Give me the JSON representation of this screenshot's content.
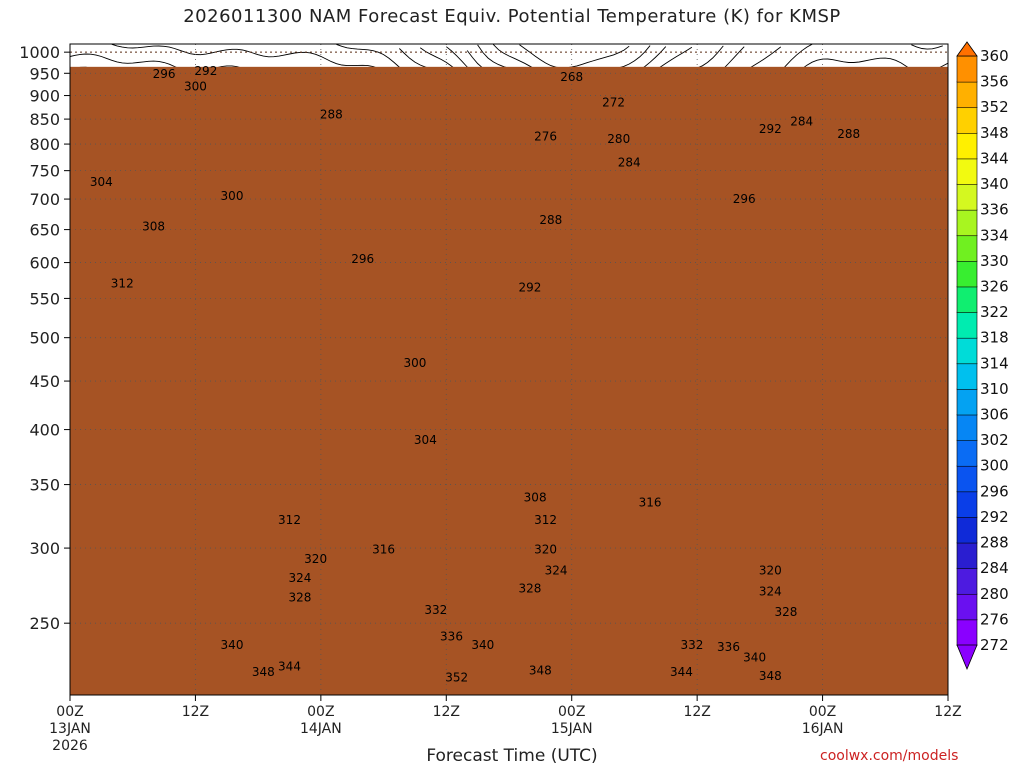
{
  "chart_data": {
    "type": "heatmap",
    "title": "2026011300 NAM Forecast Equiv. Potential Temperature (K) for KMSP",
    "xlabel": "Forecast Time (UTC)",
    "ylabel": "",
    "credit": "coolwx.com/models",
    "y_axis": {
      "scale": "log-pressure",
      "inverted": true,
      "range": [
        1020,
        210
      ],
      "ticks": [
        250,
        300,
        350,
        400,
        450,
        500,
        550,
        600,
        650,
        700,
        750,
        800,
        850,
        900,
        950,
        1000
      ]
    },
    "x_axis": {
      "range_hours": [
        0,
        84
      ],
      "ticks": [
        {
          "hour": 0,
          "label": [
            "00Z",
            "13JAN",
            "2026"
          ]
        },
        {
          "hour": 12,
          "label": [
            "12Z"
          ]
        },
        {
          "hour": 24,
          "label": [
            "00Z",
            "14JAN"
          ]
        },
        {
          "hour": 36,
          "label": [
            "12Z"
          ]
        },
        {
          "hour": 48,
          "label": [
            "00Z",
            "15JAN"
          ]
        },
        {
          "hour": 60,
          "label": [
            "12Z"
          ]
        },
        {
          "hour": 72,
          "label": [
            "00Z",
            "16JAN"
          ]
        },
        {
          "hour": 84,
          "label": [
            "12Z"
          ]
        }
      ]
    },
    "colorbar": {
      "levels": [
        272,
        276,
        280,
        284,
        288,
        292,
        296,
        300,
        302,
        306,
        310,
        314,
        318,
        322,
        326,
        330,
        334,
        336,
        340,
        344,
        348,
        352,
        356,
        360
      ],
      "colors": [
        "#8a00ff",
        "#6a10f0",
        "#4d1be0",
        "#2a1ed0",
        "#0f2ad8",
        "#0a3ee8",
        "#0a54f0",
        "#0a6cf4",
        "#0686f4",
        "#04a2f2",
        "#00c0ee",
        "#00dcd8",
        "#00ecb0",
        "#10ee70",
        "#38ee30",
        "#70f020",
        "#a8f520",
        "#d4f820",
        "#f2fa10",
        "#fff000",
        "#ffd000",
        "#ffb000",
        "#ff9000",
        "#ff7000"
      ]
    },
    "contour_labels": [
      {
        "value": 348,
        "hour": 18.5,
        "p": 222
      },
      {
        "value": 344,
        "hour": 21.0,
        "p": 225
      },
      {
        "value": 352,
        "hour": 37.0,
        "p": 219
      },
      {
        "value": 348,
        "hour": 45.0,
        "p": 223
      },
      {
        "value": 344,
        "hour": 58.5,
        "p": 222
      },
      {
        "value": 348,
        "hour": 67.0,
        "p": 220
      },
      {
        "value": 340,
        "hour": 15.5,
        "p": 237
      },
      {
        "value": 340,
        "hour": 39.5,
        "p": 237
      },
      {
        "value": 336,
        "hour": 36.5,
        "p": 242
      },
      {
        "value": 332,
        "hour": 59.5,
        "p": 237
      },
      {
        "value": 336,
        "hour": 63.0,
        "p": 236
      },
      {
        "value": 340,
        "hour": 65.5,
        "p": 230
      },
      {
        "value": 332,
        "hour": 35.0,
        "p": 258
      },
      {
        "value": 328,
        "hour": 22.0,
        "p": 266
      },
      {
        "value": 324,
        "hour": 22.0,
        "p": 279
      },
      {
        "value": 320,
        "hour": 23.5,
        "p": 292
      },
      {
        "value": 316,
        "hour": 30.0,
        "p": 299
      },
      {
        "value": 312,
        "hour": 21.0,
        "p": 321
      },
      {
        "value": 328,
        "hour": 44.0,
        "p": 272
      },
      {
        "value": 324,
        "hour": 46.5,
        "p": 284
      },
      {
        "value": 320,
        "hour": 45.5,
        "p": 299
      },
      {
        "value": 312,
        "hour": 45.5,
        "p": 321
      },
      {
        "value": 308,
        "hour": 44.5,
        "p": 339
      },
      {
        "value": 316,
        "hour": 55.5,
        "p": 335
      },
      {
        "value": 328,
        "hour": 68.5,
        "p": 257
      },
      {
        "value": 324,
        "hour": 67.0,
        "p": 270
      },
      {
        "value": 320,
        "hour": 67.0,
        "p": 284
      },
      {
        "value": 304,
        "hour": 34.0,
        "p": 390
      },
      {
        "value": 300,
        "hour": 33.0,
        "p": 470
      },
      {
        "value": 292,
        "hour": 44.0,
        "p": 565
      },
      {
        "value": 296,
        "hour": 28.0,
        "p": 605
      },
      {
        "value": 288,
        "hour": 46.0,
        "p": 665
      },
      {
        "value": 312,
        "hour": 5.0,
        "p": 570
      },
      {
        "value": 308,
        "hour": 8.0,
        "p": 655
      },
      {
        "value": 300,
        "hour": 15.5,
        "p": 705
      },
      {
        "value": 304,
        "hour": 3.0,
        "p": 730
      },
      {
        "value": 296,
        "hour": 64.5,
        "p": 700
      },
      {
        "value": 284,
        "hour": 53.5,
        "p": 765
      },
      {
        "value": 280,
        "hour": 52.5,
        "p": 810
      },
      {
        "value": 276,
        "hour": 45.5,
        "p": 815
      },
      {
        "value": 272,
        "hour": 52.0,
        "p": 885
      },
      {
        "value": 268,
        "hour": 48.0,
        "p": 942
      },
      {
        "value": 288,
        "hour": 25.0,
        "p": 860
      },
      {
        "value": 292,
        "hour": 67.0,
        "p": 830
      },
      {
        "value": 284,
        "hour": 70.0,
        "p": 845
      },
      {
        "value": 288,
        "hour": 74.5,
        "p": 820
      },
      {
        "value": 300,
        "hour": 12.0,
        "p": 920
      },
      {
        "value": 296,
        "hour": 9.0,
        "p": 948
      },
      {
        "value": 292,
        "hour": 13.0,
        "p": 955
      }
    ]
  }
}
